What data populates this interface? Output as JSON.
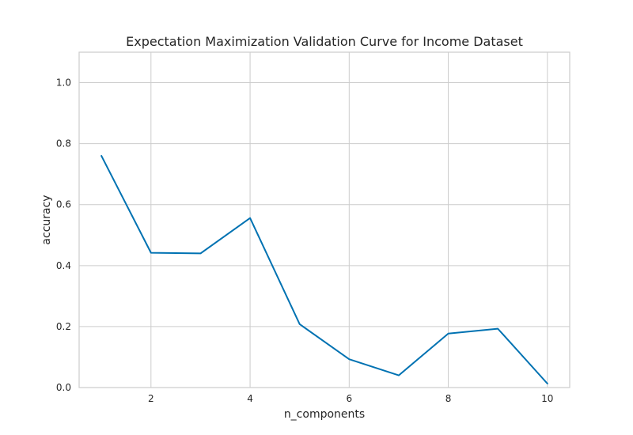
{
  "chart_data": {
    "type": "line",
    "title": "Expectation Maximization Validation Curve for Income Dataset",
    "xlabel": "n_components",
    "ylabel": "accuracy",
    "xlim": [
      0.55,
      10.45
    ],
    "ylim": [
      0,
      1.1
    ],
    "xticks": [
      2,
      4,
      6,
      8,
      10
    ],
    "xtick_labels": [
      "2",
      "4",
      "6",
      "8",
      "10"
    ],
    "yticks": [
      0.0,
      0.2,
      0.4,
      0.6,
      0.8,
      1.0
    ],
    "ytick_labels": [
      "0.0",
      "0.2",
      "0.4",
      "0.6",
      "0.8",
      "1.0"
    ],
    "grid": true,
    "series": [
      {
        "color": "#0072b2",
        "x": [
          1,
          2,
          3,
          4,
          5,
          6,
          7,
          8,
          9,
          10
        ],
        "y": [
          0.76,
          0.442,
          0.44,
          0.556,
          0.208,
          0.093,
          0.04,
          0.177,
          0.193,
          0.013
        ]
      }
    ]
  }
}
